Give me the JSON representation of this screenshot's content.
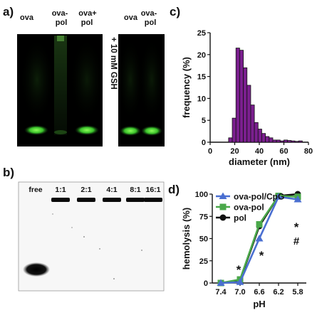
{
  "panels": {
    "a": {
      "label": "a)",
      "lanes_left": [
        "ova",
        "ova-\npol",
        "ova+\npol"
      ],
      "lanes_right": [
        "ova",
        "ova-\npol"
      ],
      "treatment": "+ 10 mM GSH"
    },
    "b": {
      "label": "b)",
      "lanes": [
        "free",
        "1:1",
        "2:1",
        "4:1",
        "8:1",
        "16:1"
      ]
    },
    "c": {
      "label": "c)"
    },
    "d": {
      "label": "d)"
    }
  },
  "chart_data": [
    {
      "type": "bar",
      "panel": "c",
      "xlabel": "diameter (nm)",
      "ylabel": "frequency (%)",
      "xlim": [
        0,
        80
      ],
      "ylim": [
        0,
        25
      ],
      "xticks": [
        0,
        20,
        40,
        60,
        80
      ],
      "yticks": [
        0,
        5,
        10,
        15,
        20,
        25
      ],
      "bin_width": 3,
      "bin_starts": [
        15,
        18,
        21,
        24,
        27,
        30,
        33,
        36,
        39,
        42,
        45,
        48,
        51,
        54,
        57,
        60,
        63,
        66,
        69,
        72
      ],
      "values": [
        1.0,
        5.5,
        21.5,
        21.0,
        17.0,
        13.0,
        8.5,
        4.5,
        3.0,
        2.0,
        1.3,
        1.0,
        0.5,
        0.5,
        0.3,
        0.5,
        0.4,
        0.3,
        0.2,
        0.3
      ],
      "color": "#7b1f8f"
    },
    {
      "type": "line",
      "panel": "d",
      "xlabel": "pH",
      "ylabel": "hemolysis (%)",
      "categories": [
        "7.4",
        "7.0",
        "6.6",
        "6.2",
        "5.8"
      ],
      "ylim": [
        0,
        100
      ],
      "yticks": [
        0,
        25,
        50,
        75,
        100
      ],
      "series": [
        {
          "name": "ova-pol/CpG",
          "values": [
            0,
            1,
            50,
            97,
            94
          ],
          "color": "#4a6fd1",
          "marker": "triangle"
        },
        {
          "name": "ova-pol",
          "values": [
            0,
            4,
            66,
            98,
            97
          ],
          "color": "#4aa84a",
          "marker": "square"
        },
        {
          "name": "pol",
          "values": [
            0,
            3,
            64,
            98,
            100
          ],
          "color": "#111111",
          "marker": "circle"
        }
      ],
      "annotations": [
        {
          "text": "*",
          "x": "7.0"
        },
        {
          "text": "*",
          "x": "6.6"
        },
        {
          "text": "*",
          "x": "5.8"
        },
        {
          "text": "#",
          "x": "5.8"
        }
      ]
    }
  ]
}
